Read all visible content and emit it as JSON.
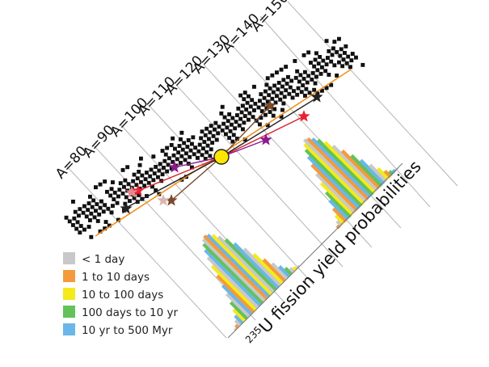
{
  "chart_data": {
    "type": "bar",
    "y_title": {
      "superscript": "235",
      "text": "U fission yield probabilities"
    },
    "mass_labels": [
      "A=80",
      "A=90",
      "A=100",
      "A=110",
      "A=120",
      "A=130",
      "A=140",
      "A=150"
    ],
    "legend": [
      {
        "label": "< 1 day",
        "color": "#c8c8c8"
      },
      {
        "label": "1 to 10 days",
        "color": "#f59a3c"
      },
      {
        "label": "10 to 100 days",
        "color": "#f4ea1c"
      },
      {
        "label": "100 days to 10 yr",
        "color": "#63c25a"
      },
      {
        "label": "10 yr to 500 Myr",
        "color": "#6ab7e8"
      }
    ],
    "light_peak": [
      1,
      2,
      4,
      6,
      9,
      13,
      18,
      23,
      29,
      35,
      40,
      44,
      47,
      49,
      50,
      49,
      47,
      44,
      40,
      35,
      29,
      23,
      17,
      12,
      8,
      5,
      3,
      2,
      1
    ],
    "heavy_peak": [
      2,
      4,
      7,
      11,
      16,
      21,
      27,
      33,
      39,
      44,
      48,
      51,
      53,
      52,
      50,
      47,
      43,
      38,
      32,
      26,
      20,
      14,
      9,
      5,
      3,
      2,
      1
    ],
    "light_colors": [
      0,
      1,
      0,
      4,
      2,
      3,
      0,
      4,
      1,
      2,
      0,
      4,
      3,
      0,
      1,
      4,
      2,
      0,
      3,
      4,
      0,
      2,
      1,
      0,
      4,
      3,
      0,
      2,
      0
    ],
    "heavy_colors": [
      1,
      0,
      2,
      1,
      4,
      3,
      2,
      0,
      1,
      4,
      3,
      2,
      0,
      1,
      4,
      3,
      2,
      0,
      1,
      3,
      4,
      0,
      2,
      1,
      3,
      4,
      0
    ]
  }
}
